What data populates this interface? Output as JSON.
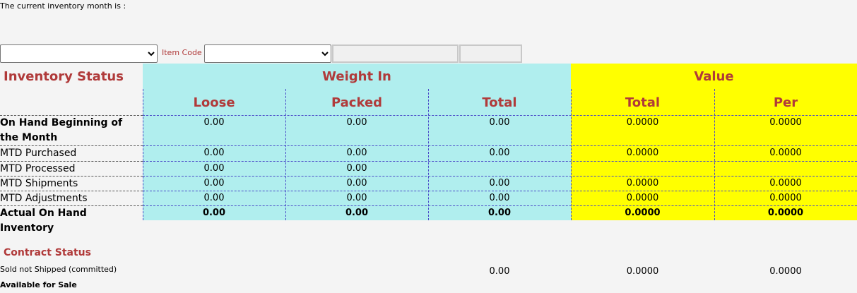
{
  "header": {
    "inventory_month_label": "The current inventory month is :"
  },
  "filters": {
    "item_code_label": "Item Code"
  },
  "inventory_table": {
    "title": "Inventory Status",
    "groups": [
      "Weight In",
      "Value"
    ],
    "columns": [
      "Loose",
      "Packed",
      "Total",
      "Total",
      "Per"
    ],
    "rows": [
      {
        "label": "On Hand Beginning of the Month",
        "cells": [
          "0.00",
          "0.00",
          "0.00",
          "0.0000",
          "0.0000"
        ]
      },
      {
        "label": "MTD Purchased",
        "cells": [
          "0.00",
          "0.00",
          "0.00",
          "0.0000",
          "0.0000"
        ]
      },
      {
        "label": "MTD Processed",
        "cells": [
          "0.00",
          "0.00",
          null,
          null,
          null
        ]
      },
      {
        "label": "MTD Shipments",
        "cells": [
          "0.00",
          "0.00",
          "0.00",
          "0.0000",
          "0.0000"
        ]
      },
      {
        "label": "MTD Adjustments",
        "cells": [
          "0.00",
          "0.00",
          "0.00",
          "0.0000",
          "0.0000"
        ]
      },
      {
        "label": "Actual On Hand Inventory",
        "cells": [
          "0.00",
          "0.00",
          "0.00",
          "0.0000",
          "0.0000"
        ]
      }
    ]
  },
  "contract_table": {
    "title": "Contract Status",
    "rows": [
      {
        "label": "Sold not Shipped (committed)",
        "cells": [
          null,
          null,
          "0.00",
          "0.0000",
          "0.0000"
        ]
      },
      {
        "label": "Available for Sale"
      }
    ]
  }
}
